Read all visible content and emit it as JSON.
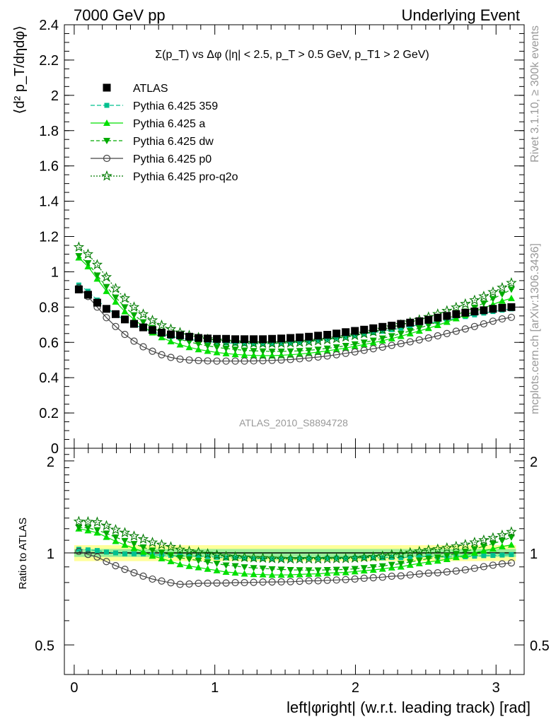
{
  "header": {
    "left": "7000 GeV pp",
    "right": "Underlying Event"
  },
  "side_labels": {
    "rivet": "Rivet 3.1.10, ≥ 300k events",
    "mcplots": "mcplots.cern.ch [arXiv:1306.3436]"
  },
  "chart_data": [
    {
      "type": "scatter",
      "panel": "main",
      "title": "Σ(p_T) vs Δφ (|η| < 2.5, p_T > 0.5 GeV, p_T1 > 2 GeV)",
      "ylabel": "⟨d² p_T/dηdφ⟩",
      "analysis_label": "ATLAS_2010_S8894728",
      "ylim": [
        0,
        2.4
      ],
      "xlim": [
        -0.07,
        3.2
      ],
      "y_ticks": [
        "0",
        "0.2",
        "0.4",
        "0.6",
        "0.8",
        "1",
        "1.2",
        "1.4",
        "1.6",
        "1.8",
        "2",
        "2.2",
        "2.4"
      ],
      "legend_position": "top-left",
      "x": [
        0.0327,
        0.0982,
        0.1636,
        0.2291,
        0.2945,
        0.36,
        0.4254,
        0.4909,
        0.5563,
        0.6218,
        0.6872,
        0.7527,
        0.8181,
        0.8836,
        0.949,
        1.0145,
        1.0799,
        1.1454,
        1.2108,
        1.2763,
        1.3417,
        1.4072,
        1.4726,
        1.5381,
        1.6035,
        1.669,
        1.7344,
        1.7999,
        1.8653,
        1.9308,
        1.9962,
        2.0617,
        2.1271,
        2.1926,
        2.258,
        2.3235,
        2.3889,
        2.4544,
        2.5198,
        2.5853,
        2.6507,
        2.7162,
        2.7816,
        2.8471,
        2.9125,
        2.978,
        3.0434,
        3.1089
      ],
      "series": [
        {
          "name": "ATLAS",
          "color": "#000000",
          "values": [
            0.9,
            0.87,
            0.825,
            0.79,
            0.76,
            0.73,
            0.705,
            0.685,
            0.67,
            0.655,
            0.645,
            0.64,
            0.632,
            0.625,
            0.622,
            0.62,
            0.62,
            0.618,
            0.618,
            0.618,
            0.618,
            0.62,
            0.622,
            0.625,
            0.628,
            0.632,
            0.638,
            0.643,
            0.65,
            0.658,
            0.665,
            0.672,
            0.68,
            0.688,
            0.695,
            0.705,
            0.712,
            0.72,
            0.728,
            0.74,
            0.75,
            0.76,
            0.768,
            0.775,
            0.782,
            0.79,
            0.796,
            0.8
          ]
        },
        {
          "name": "Pythia 6.425 359",
          "color": "#00c08f",
          "values": [
            0.925,
            0.89,
            0.84,
            0.795,
            0.76,
            0.725,
            0.7,
            0.68,
            0.66,
            0.645,
            0.633,
            0.625,
            0.617,
            0.61,
            0.605,
            0.6,
            0.597,
            0.595,
            0.593,
            0.592,
            0.592,
            0.593,
            0.595,
            0.598,
            0.602,
            0.607,
            0.612,
            0.618,
            0.625,
            0.632,
            0.64,
            0.648,
            0.655,
            0.663,
            0.672,
            0.68,
            0.69,
            0.7,
            0.708,
            0.717,
            0.727,
            0.737,
            0.746,
            0.756,
            0.766,
            0.775,
            0.783,
            0.79
          ]
        },
        {
          "name": "Pythia 6.425 a",
          "color": "#00e000",
          "values": [
            1.08,
            1.03,
            0.96,
            0.89,
            0.83,
            0.775,
            0.73,
            0.69,
            0.655,
            0.628,
            0.605,
            0.587,
            0.572,
            0.56,
            0.551,
            0.543,
            0.537,
            0.532,
            0.528,
            0.526,
            0.525,
            0.525,
            0.527,
            0.53,
            0.534,
            0.539,
            0.545,
            0.552,
            0.56,
            0.568,
            0.578,
            0.588,
            0.598,
            0.61,
            0.622,
            0.635,
            0.65,
            0.665,
            0.68,
            0.697,
            0.715,
            0.735,
            0.755,
            0.775,
            0.795,
            0.815,
            0.835,
            0.85
          ]
        },
        {
          "name": "Pythia 6.425 dw",
          "color": "#00aa00",
          "values": [
            1.09,
            1.05,
            0.98,
            0.915,
            0.855,
            0.8,
            0.755,
            0.715,
            0.683,
            0.657,
            0.635,
            0.617,
            0.603,
            0.59,
            0.58,
            0.572,
            0.565,
            0.56,
            0.555,
            0.552,
            0.55,
            0.549,
            0.549,
            0.55,
            0.552,
            0.555,
            0.56,
            0.566,
            0.573,
            0.581,
            0.59,
            0.6,
            0.611,
            0.623,
            0.636,
            0.65,
            0.665,
            0.681,
            0.698,
            0.716,
            0.735,
            0.755,
            0.776,
            0.798,
            0.822,
            0.847,
            0.873,
            0.9
          ]
        },
        {
          "name": "Pythia 6.425 p0",
          "color": "#444444",
          "values": [
            0.91,
            0.86,
            0.8,
            0.74,
            0.69,
            0.645,
            0.607,
            0.575,
            0.55,
            0.53,
            0.515,
            0.505,
            0.5,
            0.497,
            0.495,
            0.494,
            0.494,
            0.494,
            0.494,
            0.495,
            0.496,
            0.498,
            0.5,
            0.503,
            0.507,
            0.512,
            0.517,
            0.523,
            0.53,
            0.538,
            0.546,
            0.555,
            0.564,
            0.573,
            0.583,
            0.593,
            0.603,
            0.614,
            0.625,
            0.637,
            0.65,
            0.663,
            0.676,
            0.69,
            0.705,
            0.72,
            0.733,
            0.742
          ]
        },
        {
          "name": "Pythia 6.425 pro-q2o",
          "color": "#007a00",
          "values": [
            1.14,
            1.1,
            1.04,
            0.97,
            0.905,
            0.85,
            0.8,
            0.76,
            0.725,
            0.697,
            0.675,
            0.656,
            0.64,
            0.628,
            0.618,
            0.61,
            0.604,
            0.6,
            0.597,
            0.595,
            0.594,
            0.594,
            0.595,
            0.597,
            0.6,
            0.604,
            0.609,
            0.615,
            0.622,
            0.63,
            0.639,
            0.649,
            0.66,
            0.672,
            0.685,
            0.699,
            0.713,
            0.728,
            0.744,
            0.761,
            0.779,
            0.798,
            0.818,
            0.839,
            0.861,
            0.885,
            0.91,
            0.937
          ]
        }
      ]
    },
    {
      "type": "scatter",
      "panel": "ratio",
      "ylabel": "Ratio to ATLAS",
      "xlabel": "left|φright| (w.r.t. leading track) [rad]",
      "y_scale": "log",
      "ylim": [
        0.4,
        2.2
      ],
      "xlim": [
        -0.07,
        3.2
      ],
      "x_ticks": [
        "0",
        "1",
        "2",
        "3"
      ],
      "y_ticks": [
        "0.5",
        "1",
        "2"
      ],
      "band_green": [
        0.97,
        1.03
      ],
      "band_yellow": [
        0.94,
        1.06
      ]
    }
  ]
}
